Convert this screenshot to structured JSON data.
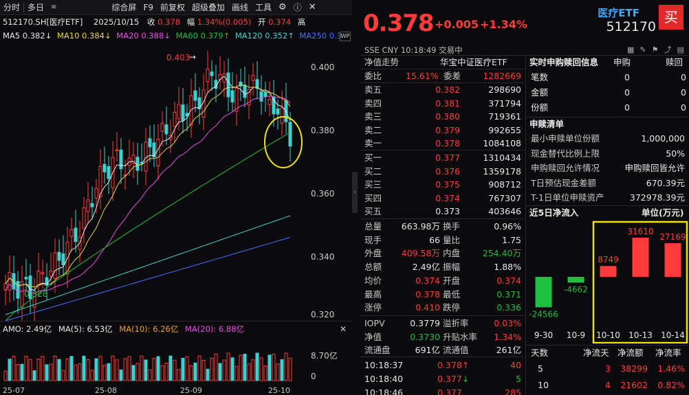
{
  "toolbar": {
    "items": [
      "分时",
      "多日",
      "综合屏",
      "F9",
      "前复权",
      "超级叠加",
      "画线",
      "工具"
    ]
  },
  "info": {
    "code_name": "512170.SH[医疗ETF]",
    "date": "2025/10/15",
    "close_label": "收",
    "close": "0.378",
    "amp_label": "幅",
    "amp": "1.34%(0.005)",
    "open_label": "开",
    "open": "0.374",
    "high_label": "高"
  },
  "ma": {
    "ma5": "MA5 0.382↓",
    "ma10": "MA10 0.384↓",
    "ma20": "MA20 0.388↓",
    "ma60": "MA60 0.379↑",
    "ma120": "MA120 0.352↑",
    "ma250": "MA250 0.3"
  },
  "chart": {
    "y_ticks": [
      "0.400",
      "0.380",
      "0.360",
      "0.340",
      "0.320"
    ],
    "high_label": "0.403",
    "low_label": "0.328",
    "x_ticks": [
      "25-07",
      "25-08",
      "25-09",
      "25-10"
    ]
  },
  "volume": {
    "amo": "AMO: 2.49亿",
    "ma5": "MA(5): 6.53亿",
    "ma10": "MA(10): 6.26亿",
    "ma20": "MA(20): 6.88亿",
    "y_tick1": "8.70亿",
    "y_tick0": "0"
  },
  "quote": {
    "price": "0.378",
    "change": "+0.005",
    "change_pct": "+1.34%",
    "exchange": "SSE   CNY   10:18:49   交易中",
    "nav_title": "净值走势",
    "index_name": "华宝中证医疗ETF"
  },
  "orderbook": {
    "webi_label": "委比",
    "webi": "15.61%",
    "wecha_label": "委差",
    "wecha": "1282669",
    "asks": [
      {
        "label": "卖五",
        "price": "0.382",
        "vol": "298690"
      },
      {
        "label": "卖四",
        "price": "0.381",
        "vol": "371794"
      },
      {
        "label": "卖三",
        "price": "0.380",
        "vol": "719361"
      },
      {
        "label": "卖二",
        "price": "0.379",
        "vol": "992655"
      },
      {
        "label": "卖一",
        "price": "0.378",
        "vol": "1084108"
      }
    ],
    "bids": [
      {
        "label": "买一",
        "price": "0.377",
        "vol": "1310434"
      },
      {
        "label": "买二",
        "price": "0.376",
        "vol": "1359178"
      },
      {
        "label": "买三",
        "price": "0.375",
        "vol": "908712"
      },
      {
        "label": "买四",
        "price": "0.374",
        "vol": "767307"
      },
      {
        "label": "买五",
        "price": "0.373",
        "vol": "403646"
      }
    ]
  },
  "stats": [
    {
      "l1": "总量",
      "v1": "663.98万",
      "l2": "换手",
      "v2": "0.96%"
    },
    {
      "l1": "现手",
      "v1": "66",
      "l2": "量比",
      "v2": "1.75"
    },
    {
      "l1": "外盘",
      "v1": "409.58万",
      "l2": "内盘",
      "v2": "254.40万"
    },
    {
      "l1": "总额",
      "v1": "2.49亿",
      "l2": "振幅",
      "v2": "1.88%"
    },
    {
      "l1": "均价",
      "v1": "0.374",
      "l2": "开盘",
      "v2": "0.374"
    },
    {
      "l1": "最高",
      "v1": "0.378",
      "l2": "最低",
      "v2": "0.371"
    },
    {
      "l1": "涨停",
      "v1": "0.410",
      "l2": "跌停",
      "v2": "0.336"
    }
  ],
  "iopv": [
    {
      "l1": "IOPV",
      "v1": "0.3779",
      "l2": "溢折率",
      "v2": "0.03%"
    },
    {
      "l1": "净值",
      "v1": "0.3730",
      "l2": "升贴水率",
      "v2": "1.34%"
    },
    {
      "l1": "流通盘",
      "v1": "691亿",
      "l2": "流通值",
      "v2": "261亿"
    }
  ],
  "ticks": [
    {
      "time": "10:18:37",
      "price": "0.378",
      "arrow": "↑",
      "vol": "40"
    },
    {
      "time": "10:18:40",
      "price": "0.377",
      "arrow": "↓",
      "vol": "5"
    },
    {
      "time": "10:18:46",
      "price": "0.377",
      "arrow": "",
      "vol": "285"
    }
  ],
  "right": {
    "name": "医疗ETF",
    "code": "512170",
    "buy": "买",
    "rt_title": "实时申购赎回信息",
    "rt_col1": "申购",
    "rt_col2": "赎回",
    "rt_rows": [
      {
        "label": "笔数",
        "a": "0",
        "b": "0"
      },
      {
        "label": "金额",
        "a": "0",
        "b": "0"
      },
      {
        "label": "份额",
        "a": "0",
        "b": "0"
      }
    ],
    "list_title": "申赎清单",
    "list_rows": [
      {
        "label": "最小申赎单位份额",
        "value": "1,000,000"
      },
      {
        "label": "现金替代比例上限",
        "value": "50%"
      },
      {
        "label": "申购赎回允许情况",
        "value": "申购赎回皆允许"
      },
      {
        "label": "T日预估现金差额",
        "value": "670.39元"
      },
      {
        "label": "T-1日单位申赎资产",
        "value": "372978.39元"
      }
    ],
    "flow_title": "近5日净流入",
    "flow_unit": "单位(万元)",
    "flow_table": {
      "h1": "天数",
      "h2": "净流天",
      "h3": "净流额",
      "h4": "净流率",
      "rows": [
        {
          "days": "5",
          "flow_days": "3",
          "amount": "38299",
          "rate": "1.46%"
        },
        {
          "days": "10",
          "flow_days": "4",
          "amount": "21602",
          "rate": "0.82%"
        }
      ]
    }
  },
  "chart_data": {
    "type": "bar",
    "title": "近5日净流入",
    "ylabel": "单位(万元)",
    "categories": [
      "9-30",
      "10-9",
      "10-10",
      "10-13",
      "10-14"
    ],
    "values": [
      -24566,
      -4662,
      8749,
      31610,
      27169
    ],
    "value_labels": [
      "-24566",
      "-4662",
      "8749",
      "31610",
      "27169"
    ],
    "colors": {
      "positive": "#ff3b3b",
      "negative": "#1fbf3f",
      "highlight": "#f5e400"
    }
  },
  "colors": {
    "up": "#ff3b3b",
    "down": "#1fbf3f",
    "accent": "#3fa9ff"
  }
}
